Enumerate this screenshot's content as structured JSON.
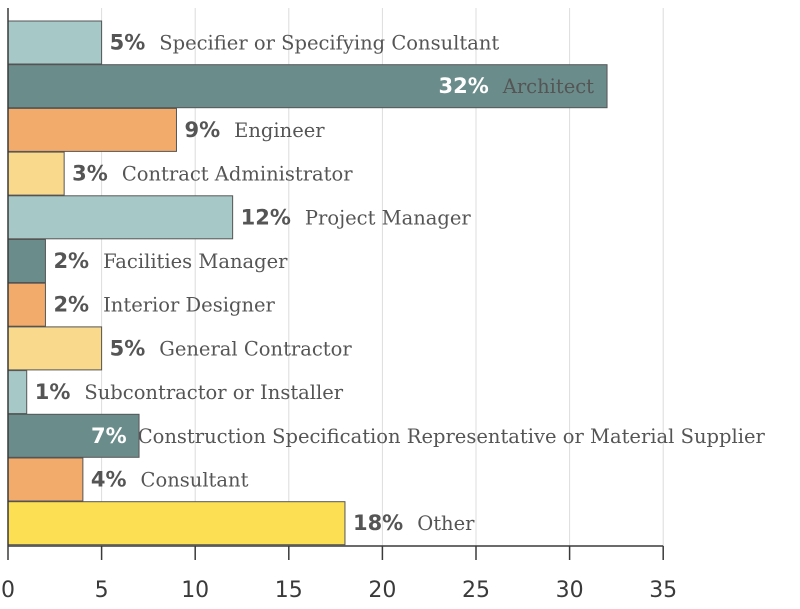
{
  "chart_data": {
    "type": "bar",
    "orientation": "horizontal",
    "title": "",
    "xlabel": "",
    "ylabel": "",
    "xlim": [
      0,
      35
    ],
    "xticks": [
      "0",
      "5",
      "10",
      "15",
      "20",
      "25",
      "30",
      "35"
    ],
    "grid": true,
    "categories": [
      "Specifier or Specifying Consultant",
      "Architect",
      "Engineer",
      "Contract Administrator",
      "Project Manager",
      "Facilities Manager",
      "Interior Designer",
      "General Contractor",
      "Subcontractor or Installer",
      "Construction Specification Representative or Material Supplier",
      "Consultant",
      "Other"
    ],
    "values": [
      5,
      32,
      9,
      3,
      12,
      2,
      2,
      5,
      1,
      7,
      4,
      18
    ],
    "value_labels": [
      "5%",
      "32%",
      "9%",
      "3%",
      "12%",
      "2%",
      "2%",
      "5%",
      "1%",
      "7%",
      "4%",
      "18%"
    ],
    "label_inside": [
      false,
      true,
      false,
      false,
      false,
      false,
      false,
      false,
      false,
      true,
      false,
      false
    ],
    "colors": [
      "#a6c8c7",
      "#6a8c8b",
      "#f3ab6c",
      "#f9d98c",
      "#a6c8c7",
      "#6a8c8b",
      "#f3ab6c",
      "#f9d98c",
      "#a6c8c7",
      "#6a8c8b",
      "#f3ab6c",
      "#fcdf52"
    ]
  }
}
